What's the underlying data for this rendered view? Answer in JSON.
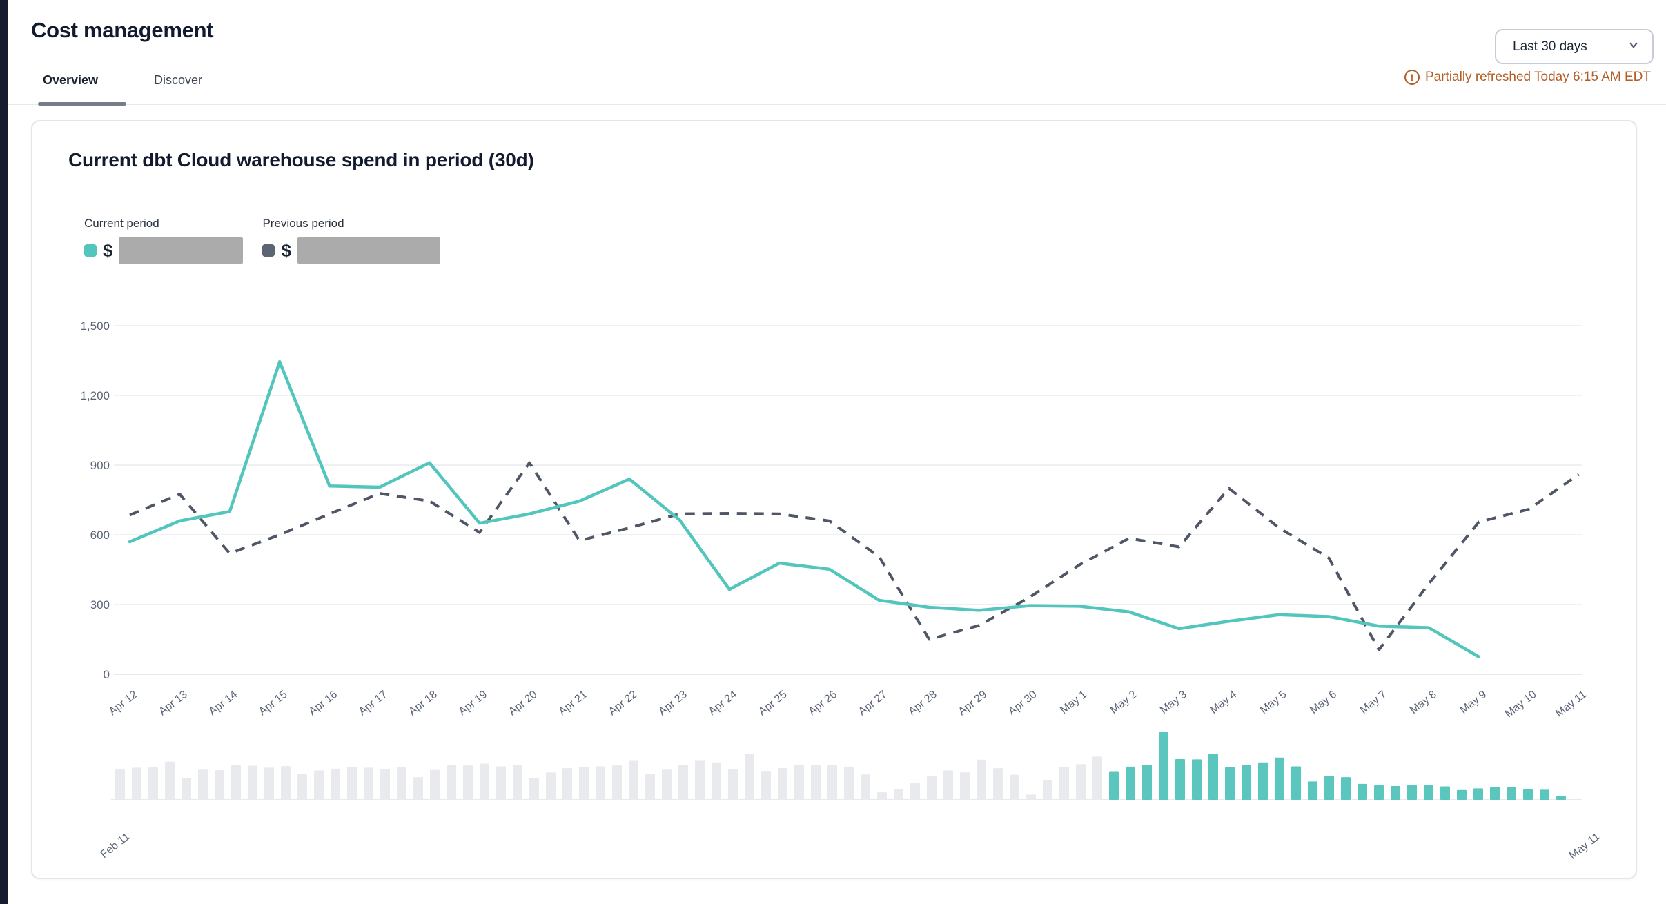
{
  "header": {
    "title": "Cost management",
    "tabs": [
      {
        "label": "Overview",
        "active": true
      },
      {
        "label": "Discover",
        "active": false
      }
    ]
  },
  "controls": {
    "date_range": "Last 30 days",
    "refresh_status": "Partially refreshed Today 6:15 AM EDT",
    "warning_glyph": "!"
  },
  "card": {
    "title": "Current dbt Cloud warehouse spend in period (30d)",
    "legend": {
      "currency": "$",
      "current": {
        "label": "Current period",
        "value_redacted": true
      },
      "previous": {
        "label": "Previous period",
        "value_redacted": true
      }
    }
  },
  "colors": {
    "current_line": "#52c5bd",
    "previous_line": "#4f5766",
    "previous_swatch": "#5d6472",
    "gridline": "#eef0f3",
    "zero_line": "#e7e9ed",
    "axis_text": "#5a6375",
    "context_history_bar": "#e8eaee",
    "context_selected_bar": "#5bc6be",
    "accent_orange": "#b25d26"
  },
  "chart_data": {
    "type": "line",
    "title": "Current dbt Cloud warehouse spend in period (30d)",
    "xlabel": "",
    "ylabel": "",
    "ylim": [
      0,
      1500
    ],
    "yticks": [
      0,
      300,
      600,
      900,
      1200,
      1500
    ],
    "grid": "horizontal",
    "legend_position": "top-left",
    "categories": [
      "Apr 12",
      "Apr 13",
      "Apr 14",
      "Apr 15",
      "Apr 16",
      "Apr 17",
      "Apr 18",
      "Apr 19",
      "Apr 20",
      "Apr 21",
      "Apr 22",
      "Apr 23",
      "Apr 24",
      "Apr 25",
      "Apr 26",
      "Apr 27",
      "Apr 28",
      "Apr 29",
      "Apr 30",
      "May 1",
      "May 2",
      "May 3",
      "May 4",
      "May 5",
      "May 6",
      "May 7",
      "May 8",
      "May 9",
      "May 10",
      "May 11"
    ],
    "series": [
      {
        "name": "Current period",
        "style": "solid",
        "values": [
          570,
          660,
          700,
          1345,
          810,
          805,
          910,
          650,
          690,
          745,
          840,
          665,
          365,
          478,
          452,
          318,
          288,
          275,
          295,
          293,
          268,
          196,
          228,
          256,
          248,
          207,
          200,
          75,
          null,
          null
        ]
      },
      {
        "name": "Previous period",
        "style": "dashed",
        "values": [
          685,
          775,
          520,
          600,
          690,
          778,
          745,
          610,
          910,
          575,
          630,
          690,
          692,
          690,
          660,
          505,
          150,
          210,
          330,
          470,
          585,
          548,
          800,
          630,
          500,
          105,
          390,
          655,
          710,
          860
        ]
      }
    ],
    "context_bar_chart": {
      "description": "Daily spend history brush strip; selected window (last 30 days) highlighted",
      "start_label": "Feb 11",
      "end_label": "May 11",
      "pre_window_values": [
        620,
        640,
        645,
        760,
        435,
        600,
        590,
        700,
        680,
        640,
        670,
        510,
        585,
        620,
        650,
        640,
        610,
        650,
        450,
        595,
        700,
        685,
        720,
        665,
        700,
        430,
        545,
        630,
        650,
        665
      ],
      "window_history_from_series": "Previous period",
      "selected_from_series": "Current period"
    }
  }
}
